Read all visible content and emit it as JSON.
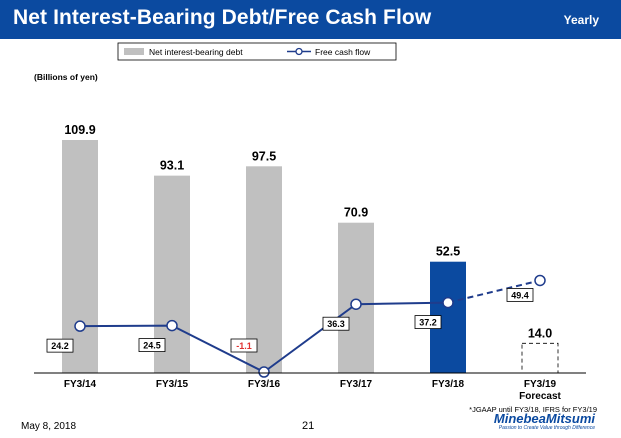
{
  "header": {
    "title": "Net Interest-Bearing Debt/Free Cash Flow",
    "tag": "Yearly"
  },
  "chart_data": {
    "type": "bar",
    "categories": [
      "FY3/14",
      "FY3/15",
      "FY3/16",
      "FY3/17",
      "FY3/18",
      "FY3/19"
    ],
    "category_sublabels": [
      "",
      "",
      "",
      "",
      "",
      "Forecast"
    ],
    "unit_label": "(Billions of yen)",
    "series": [
      {
        "name": "Net interest-bearing debt",
        "kind": "bar",
        "values": [
          109.9,
          93.1,
          97.5,
          70.9,
          52.5,
          14.0
        ],
        "labels": [
          "109.9",
          "93.1",
          "97.5",
          "70.9",
          "52.5",
          "14.0"
        ]
      },
      {
        "name": "Free cash flow",
        "kind": "line",
        "values": [
          24.2,
          24.5,
          -1.1,
          36.3,
          37.2,
          49.4
        ],
        "labels": [
          "24.2",
          "24.5",
          "-1.1",
          "36.3",
          "37.2",
          "49.4"
        ]
      }
    ],
    "highlight_index": 4,
    "forecast_index": 5,
    "colors": {
      "bar": "#c0c0c0",
      "bar_highlight": "#0b4aa0",
      "line": "#1f3c8c",
      "negative_label": "#e03030"
    },
    "ylim": [
      0,
      120
    ],
    "line_ylim": [
      -1.1,
      80
    ]
  },
  "footer": {
    "date": "May 8, 2018",
    "page": "21",
    "note": "*JGAAP until FY3/18, IFRS for FY3/19"
  },
  "logo": {
    "name": "MinebeaMitsumi",
    "tagline": "Passion to Create Value through Difference"
  }
}
